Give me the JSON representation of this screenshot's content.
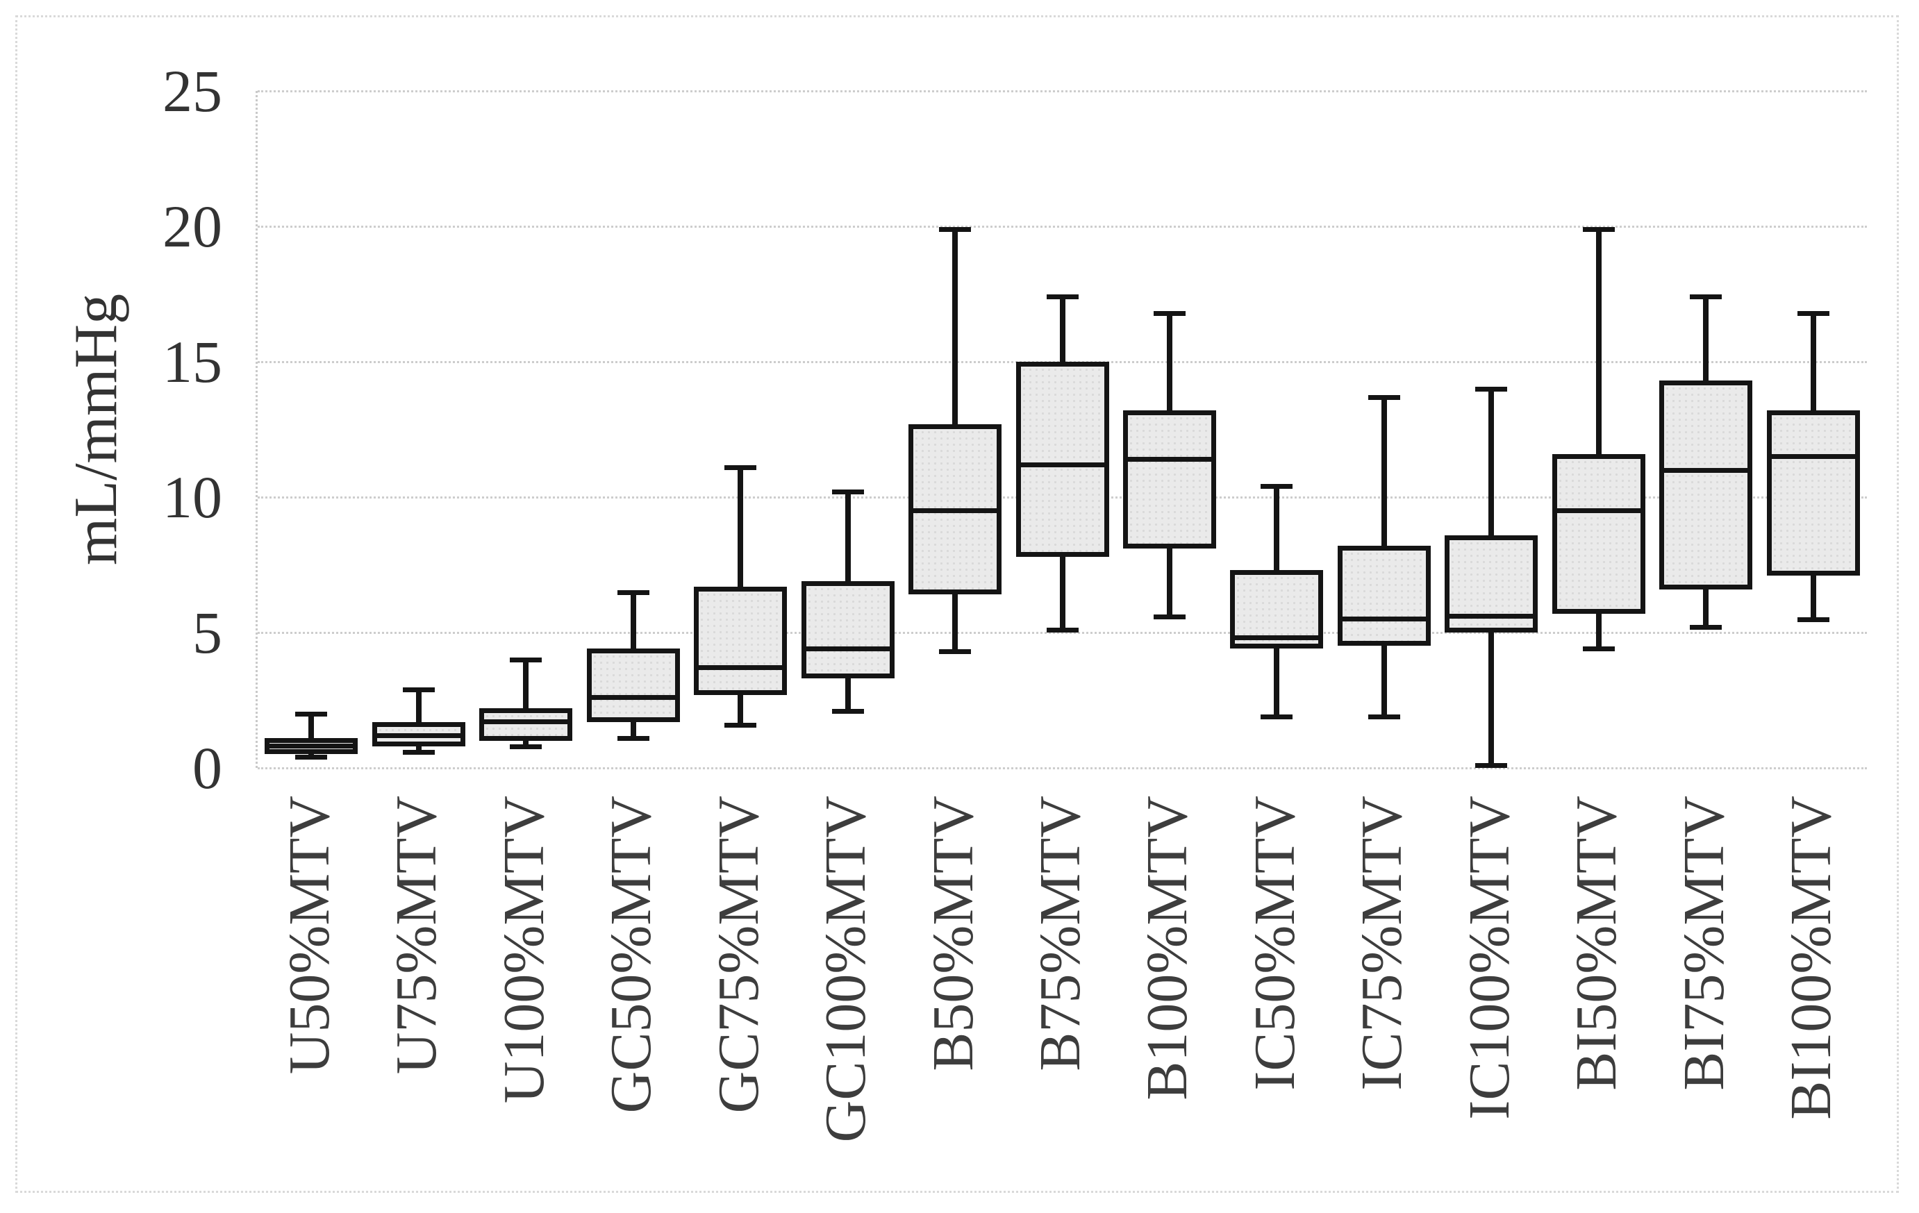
{
  "figure": {
    "background_color": "#ffffff",
    "outer_border_color": "#d9d9d9",
    "gridline_color": "#cdcdcd",
    "box_fill_color": "#eaeaea",
    "box_border_color": "#141414",
    "text_color": "#333333"
  },
  "chart_data": {
    "type": "box",
    "title": "",
    "xlabel": "",
    "ylabel": "mL/mmHg",
    "ylim": [
      0,
      25
    ],
    "yticks": [
      0,
      5,
      10,
      15,
      20,
      25
    ],
    "grid": "horizontal-dotted",
    "legend": "none",
    "categories": [
      "U50%MTV",
      "U75%MTV",
      "U100%MTV",
      "GC50%MTV",
      "GC75%MTV",
      "GC100%MTV",
      "B50%MTV",
      "B75%MTV",
      "B100%MTV",
      "IC50%MTV",
      "IC75%MTV",
      "IC100%MTV",
      "BI50%MTV",
      "BI75%MTV",
      "BI100%MTV"
    ],
    "series": [
      {
        "label": "U50%MTV",
        "whisker_min": 0.4,
        "q1": 0.5,
        "median": 0.8,
        "q3": 1.1,
        "whisker_max": 2.0
      },
      {
        "label": "U75%MTV",
        "whisker_min": 0.6,
        "q1": 0.8,
        "median": 1.2,
        "q3": 1.7,
        "whisker_max": 2.9
      },
      {
        "label": "U100%MTV",
        "whisker_min": 0.8,
        "q1": 1.0,
        "median": 1.7,
        "q3": 2.2,
        "whisker_max": 4.0
      },
      {
        "label": "GC50%MTV",
        "whisker_min": 1.1,
        "q1": 1.7,
        "median": 2.6,
        "q3": 4.4,
        "whisker_max": 6.5
      },
      {
        "label": "GC75%MTV",
        "whisker_min": 1.6,
        "q1": 2.7,
        "median": 3.7,
        "q3": 6.7,
        "whisker_max": 11.1
      },
      {
        "label": "GC100%MTV",
        "whisker_min": 2.1,
        "q1": 3.3,
        "median": 4.4,
        "q3": 6.9,
        "whisker_max": 10.2
      },
      {
        "label": "B50%MTV",
        "whisker_min": 4.3,
        "q1": 6.4,
        "median": 9.5,
        "q3": 12.7,
        "whisker_max": 19.9
      },
      {
        "label": "B75%MTV",
        "whisker_min": 5.1,
        "q1": 7.8,
        "median": 11.2,
        "q3": 15.0,
        "whisker_max": 17.4
      },
      {
        "label": "B100%MTV",
        "whisker_min": 5.6,
        "q1": 8.1,
        "median": 11.4,
        "q3": 13.2,
        "whisker_max": 16.8
      },
      {
        "label": "IC50%MTV",
        "whisker_min": 1.9,
        "q1": 4.4,
        "median": 4.8,
        "q3": 7.3,
        "whisker_max": 10.4
      },
      {
        "label": "IC75%MTV",
        "whisker_min": 1.9,
        "q1": 4.5,
        "median": 5.5,
        "q3": 8.2,
        "whisker_max": 13.7
      },
      {
        "label": "IC100%MTV",
        "whisker_min": 0.1,
        "q1": 5.0,
        "median": 5.6,
        "q3": 8.6,
        "whisker_max": 14.0
      },
      {
        "label": "BI50%MTV",
        "whisker_min": 4.4,
        "q1": 5.7,
        "median": 9.5,
        "q3": 11.6,
        "whisker_max": 19.9
      },
      {
        "label": "BI75%MTV",
        "whisker_min": 5.2,
        "q1": 6.6,
        "median": 11.0,
        "q3": 14.3,
        "whisker_max": 17.4
      },
      {
        "label": "BI100%MTV",
        "whisker_min": 5.5,
        "q1": 7.1,
        "median": 11.5,
        "q3": 13.2,
        "whisker_max": 16.8
      }
    ]
  }
}
